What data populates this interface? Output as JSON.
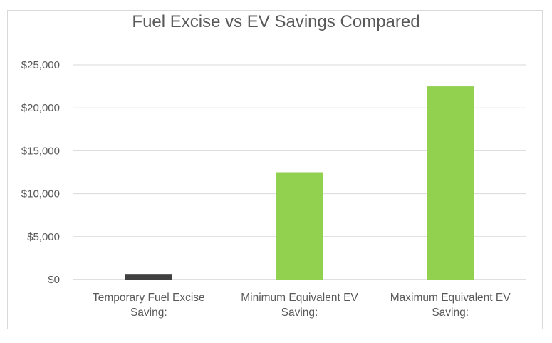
{
  "chart_data": {
    "type": "bar",
    "title": "Fuel Excise vs EV Savings Compared",
    "categories": [
      [
        "Temporary Fuel Excise",
        "Saving:"
      ],
      [
        "Minimum Equivalent EV",
        "Saving:"
      ],
      [
        "Maximum Equivalent EV",
        "Saving:"
      ]
    ],
    "values": [
      650,
      12500,
      22500
    ],
    "bar_colors": [
      "#404040",
      "#92d050",
      "#92d050"
    ],
    "ylim": [
      0,
      25000
    ],
    "yticks": [
      0,
      5000,
      10000,
      15000,
      20000,
      25000
    ],
    "ytick_labels": [
      "$0",
      "$5,000",
      "$10,000",
      "$15,000",
      "$20,000",
      "$25,000"
    ],
    "grid": true,
    "legend": "none"
  }
}
